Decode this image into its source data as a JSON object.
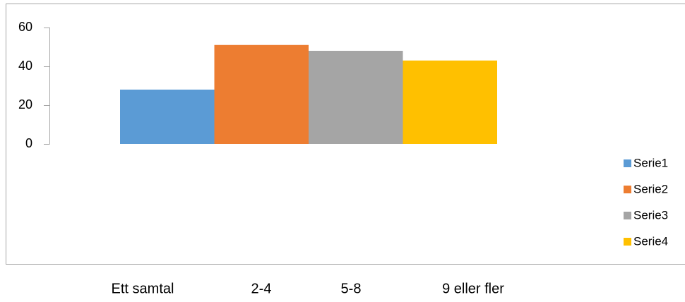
{
  "chart_data": {
    "type": "bar",
    "categories": [
      null
    ],
    "series": [
      {
        "name": "Serie1",
        "color": "#5b9bd5",
        "values": [
          28
        ]
      },
      {
        "name": "Serie2",
        "color": "#ed7d31",
        "values": [
          51
        ]
      },
      {
        "name": "Serie3",
        "color": "#a5a5a5",
        "values": [
          48
        ]
      },
      {
        "name": "Serie4",
        "color": "#ffc000",
        "values": [
          43
        ]
      }
    ],
    "ylim": [
      0,
      60
    ],
    "yticks": [
      0,
      20,
      40,
      60
    ],
    "grid": false,
    "legend": "right"
  },
  "footer_labels": [
    "Ett samtal",
    "2-4",
    "5-8",
    "9 eller fler"
  ]
}
